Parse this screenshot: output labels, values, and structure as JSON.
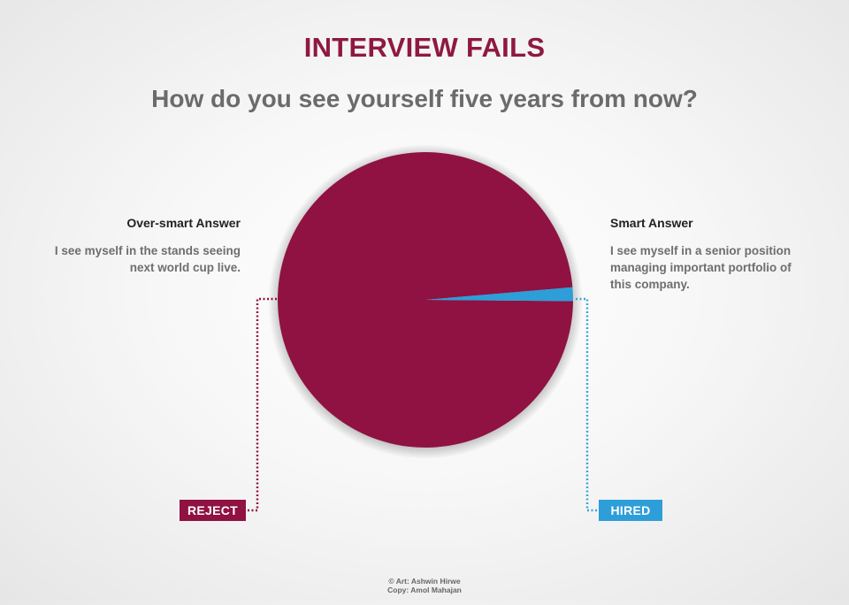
{
  "header": {
    "title": "INTERVIEW FAILS",
    "subtitle": "How do you see yourself five years from now?"
  },
  "left_answer": {
    "heading": "Over-smart Answer",
    "lines": [
      "I see myself in the stands seeing",
      "next world cup live."
    ],
    "verdict": "REJECT"
  },
  "right_answer": {
    "heading": "Smart Answer",
    "lines": [
      "I see myself in a senior position",
      "managing important portfolio of",
      "this company."
    ],
    "verdict": "HIRED"
  },
  "credits": {
    "art": "© Art: Ashwin Hirwe",
    "copy": "Copy: Amol Mahajan"
  },
  "colors": {
    "title": "#8f1842",
    "reject": "#8f1242",
    "hired": "#2e9ed8",
    "connector_reject": "#8f1242",
    "connector_hired": "#3aa6d8"
  },
  "chart_data": {
    "type": "pie",
    "title": "",
    "slices": [
      {
        "label": "Over-smart Answer",
        "value": 98.5,
        "color": "#8f1242"
      },
      {
        "label": "Smart Answer",
        "value": 1.5,
        "color": "#2e9ed8"
      }
    ],
    "legend": "none"
  }
}
